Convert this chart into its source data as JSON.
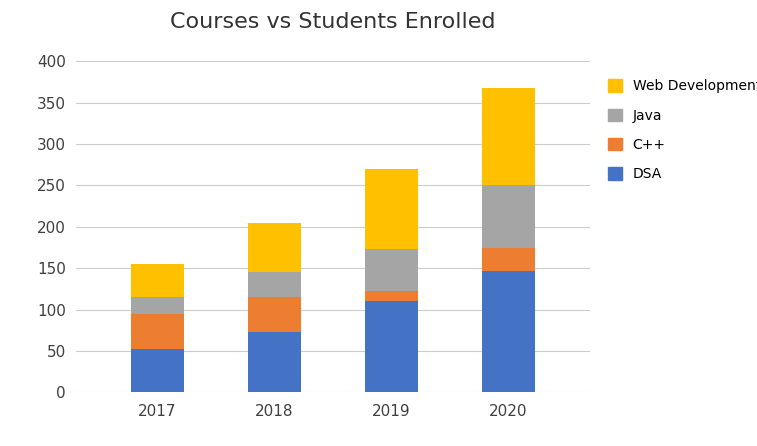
{
  "categories": [
    "2017",
    "2018",
    "2019",
    "2020"
  ],
  "series": {
    "DSA": [
      53,
      73,
      110,
      147
    ],
    "C++": [
      42,
      42,
      13,
      28
    ],
    "Java": [
      20,
      30,
      50,
      75
    ],
    "Web Development": [
      40,
      60,
      97,
      118
    ]
  },
  "colors": {
    "DSA": "#4472C4",
    "C++": "#ED7D31",
    "Java": "#A5A5A5",
    "Web Development": "#FFC000"
  },
  "title": "Courses vs Students Enrolled",
  "title_fontsize": 16,
  "ylim": [
    0,
    420
  ],
  "yticks": [
    0,
    50,
    100,
    150,
    200,
    250,
    300,
    350,
    400
  ],
  "background_color": "#ffffff",
  "grid_color": "#cccccc",
  "bar_width": 0.45
}
